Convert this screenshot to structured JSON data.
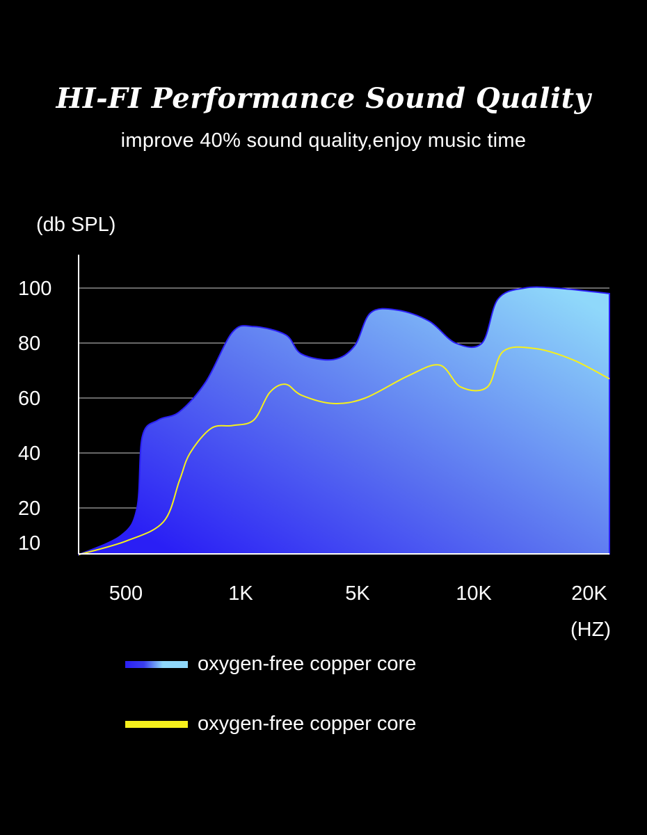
{
  "header": {
    "title": "HI-FI Performance Sound Quality",
    "subtitle": "improve 40% sound quality,enjoy music time"
  },
  "chart_data": {
    "type": "area",
    "ylabel": "(db SPL)",
    "xlabel": "(HZ)",
    "y_ticks": [
      10,
      20,
      40,
      60,
      80,
      100
    ],
    "y_gridlines": [
      20,
      40,
      60,
      80,
      100
    ],
    "ylim": [
      3,
      112
    ],
    "x_ticks": [
      "500",
      "1K",
      "5K",
      "10K",
      "20K"
    ],
    "grid": true,
    "series": [
      {
        "name": "oxygen-free copper core",
        "style": "gradient-area",
        "color_start": "#2a1ff5",
        "color_end": "#8fd8fa",
        "points": [
          [
            0.0,
            3
          ],
          [
            0.08,
            10
          ],
          [
            0.11,
            20
          ],
          [
            0.12,
            46
          ],
          [
            0.15,
            52
          ],
          [
            0.19,
            55
          ],
          [
            0.24,
            66
          ],
          [
            0.29,
            84
          ],
          [
            0.33,
            86
          ],
          [
            0.39,
            83
          ],
          [
            0.42,
            76
          ],
          [
            0.48,
            74
          ],
          [
            0.52,
            79
          ],
          [
            0.55,
            91
          ],
          [
            0.6,
            92
          ],
          [
            0.66,
            88
          ],
          [
            0.71,
            80
          ],
          [
            0.76,
            80
          ],
          [
            0.79,
            96
          ],
          [
            0.84,
            100
          ],
          [
            0.9,
            100
          ],
          [
            1.0,
            98
          ]
        ]
      },
      {
        "name": "oxygen-free copper core",
        "style": "line",
        "color": "#f6f01c",
        "points": [
          [
            0.0,
            3
          ],
          [
            0.09,
            8
          ],
          [
            0.16,
            15
          ],
          [
            0.19,
            30
          ],
          [
            0.21,
            40
          ],
          [
            0.25,
            49
          ],
          [
            0.29,
            50
          ],
          [
            0.33,
            52
          ],
          [
            0.36,
            62
          ],
          [
            0.39,
            65
          ],
          [
            0.42,
            61
          ],
          [
            0.48,
            58
          ],
          [
            0.54,
            60
          ],
          [
            0.62,
            68
          ],
          [
            0.68,
            72
          ],
          [
            0.72,
            64
          ],
          [
            0.77,
            64
          ],
          [
            0.8,
            77
          ],
          [
            0.86,
            78
          ],
          [
            0.93,
            74
          ],
          [
            1.0,
            67
          ]
        ]
      }
    ]
  },
  "legend": {
    "items": [
      {
        "label": "oxygen-free copper core",
        "swatch": "gradient"
      },
      {
        "label": "oxygen-free copper core",
        "swatch": "#f6f01c"
      }
    ]
  }
}
